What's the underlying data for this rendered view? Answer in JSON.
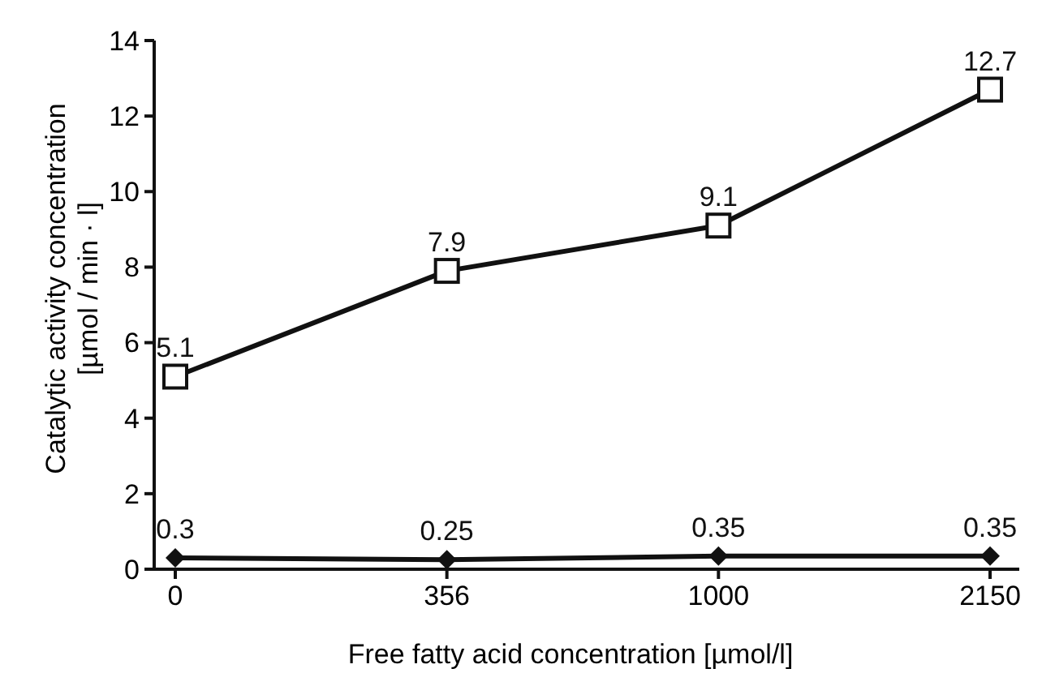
{
  "chart_data": {
    "type": "line",
    "xlabel": "Free fatty acid concentration [µmol/l]",
    "ylabel": "Catalytic activity concentration\n[µmol / min · l]",
    "categories": [
      "0",
      "356",
      "1000",
      "2150"
    ],
    "series": [
      {
        "color": "#111111",
        "values": [
          5.1,
          7.9,
          9.1,
          12.7
        ],
        "marker": "square"
      },
      {
        "color": "#111111",
        "values": [
          0.3,
          0.25,
          0.35,
          0.35
        ],
        "marker": "diamond"
      }
    ],
    "ylim": [
      0,
      14
    ],
    "yticks": [
      0,
      2,
      4,
      6,
      8,
      10,
      12,
      14
    ],
    "data_labels": true,
    "line_style": "solid"
  }
}
